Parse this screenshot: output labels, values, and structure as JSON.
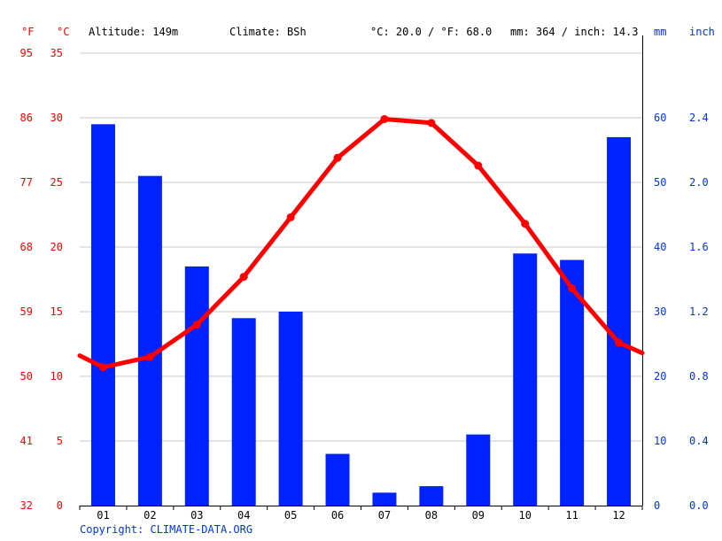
{
  "chart_data": {
    "type": "bar+line",
    "categories": [
      "01",
      "02",
      "03",
      "04",
      "05",
      "06",
      "07",
      "08",
      "09",
      "10",
      "11",
      "12"
    ],
    "precipitation_mm": [
      59,
      51,
      37,
      29,
      30,
      8,
      2,
      3,
      11,
      39,
      38,
      57
    ],
    "temperature_c": [
      10.7,
      11.5,
      14.0,
      17.7,
      22.3,
      26.9,
      29.9,
      29.6,
      26.3,
      21.8,
      16.8,
      12.6
    ],
    "temperature_line_edges_c": [
      11.6,
      11.8
    ],
    "left_axis_f": {
      "unit": "°F",
      "ticks": [
        "32",
        "41",
        "50",
        "59",
        "68",
        "77",
        "86",
        "95"
      ]
    },
    "left_axis_c": {
      "unit": "°C",
      "ticks": [
        "0",
        "5",
        "10",
        "15",
        "20",
        "25",
        "30",
        "35"
      ],
      "ylim": [
        0,
        35
      ]
    },
    "right_axis_mm": {
      "unit": "mm",
      "ticks": [
        "0",
        "10",
        "20",
        "30",
        "40",
        "50",
        "60"
      ],
      "ylim": [
        0,
        70
      ]
    },
    "right_axis_inch": {
      "unit": "inch",
      "ticks": [
        "0.0",
        "0.4",
        "0.8",
        "1.2",
        "1.6",
        "2.0",
        "2.4"
      ]
    },
    "header": {
      "altitude": "Altitude: 149m",
      "climate": "Climate: BSh",
      "temp_avg": "°C: 20.0 / °F: 68.0",
      "precip_total": "mm: 364 / inch: 14.3"
    },
    "copyright": "Copyright: CLIMATE-DATA.ORG",
    "grid": true,
    "colors": {
      "bars": "#0022ff",
      "line": "#ff0000",
      "temp_text": "#ff0000",
      "precip_text": "#0033ee",
      "grid": "#c8c8c8"
    }
  }
}
